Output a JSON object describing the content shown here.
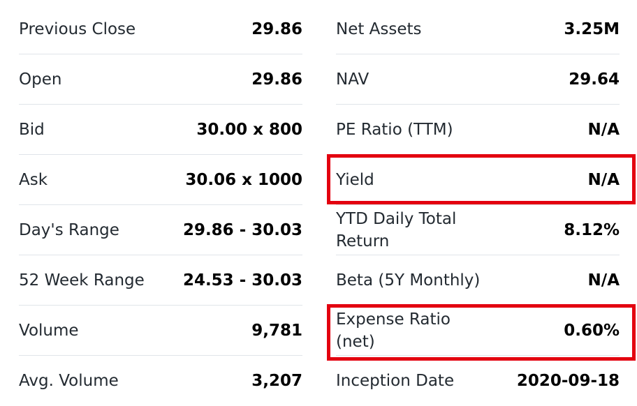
{
  "left": [
    {
      "label": "Previous Close",
      "value": "29.86"
    },
    {
      "label": "Open",
      "value": "29.86"
    },
    {
      "label": "Bid",
      "value": "30.00 x 800"
    },
    {
      "label": "Ask",
      "value": "30.06 x 1000"
    },
    {
      "label": "Day's Range",
      "value": "29.86 - 30.03"
    },
    {
      "label": "52 Week Range",
      "value": "24.53 - 30.03"
    },
    {
      "label": "Volume",
      "value": "9,781"
    },
    {
      "label": "Avg. Volume",
      "value": "3,207"
    }
  ],
  "right": [
    {
      "label": "Net Assets",
      "value": "3.25M"
    },
    {
      "label": "NAV",
      "value": "29.64"
    },
    {
      "label": "PE Ratio (TTM)",
      "value": "N/A"
    },
    {
      "label": "Yield",
      "value": "N/A"
    },
    {
      "label": "YTD Daily Total Return",
      "value": "8.12%"
    },
    {
      "label": "Beta (5Y Monthly)",
      "value": "N/A"
    },
    {
      "label": "Expense Ratio (net)",
      "value": "0.60%"
    },
    {
      "label": "Inception Date",
      "value": "2020-09-18"
    }
  ],
  "highlight_color": "#e3000f"
}
